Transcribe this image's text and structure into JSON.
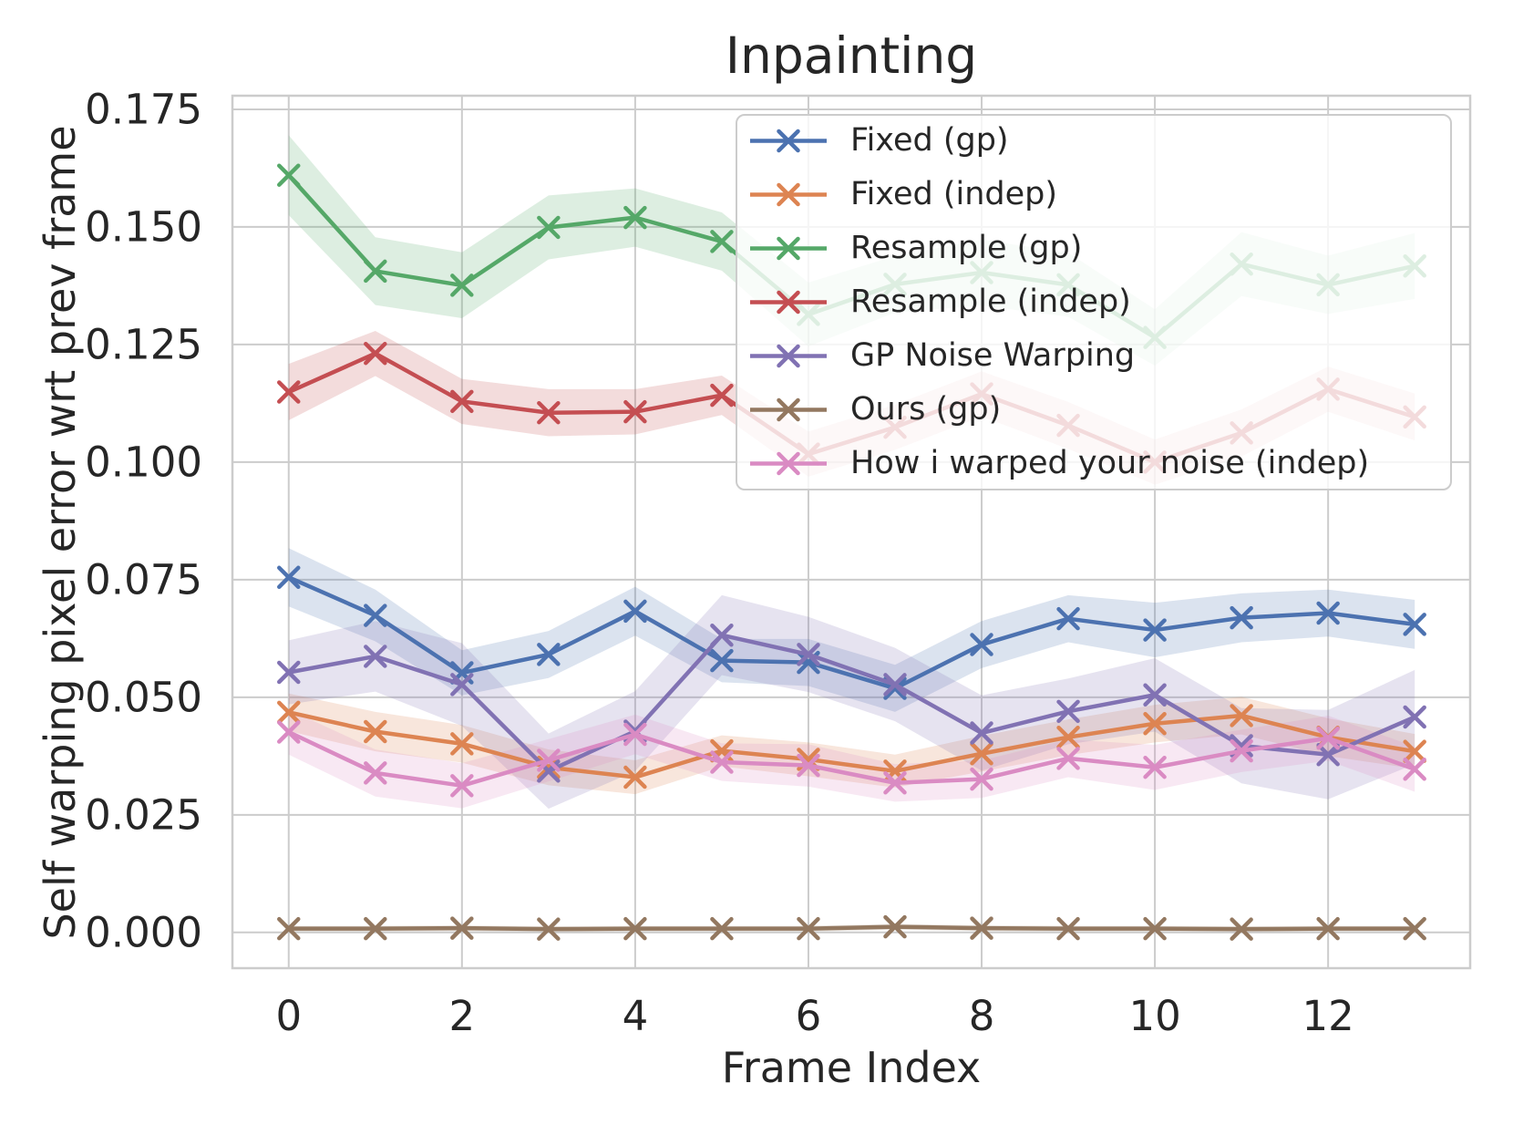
{
  "chart_data": {
    "type": "line",
    "title": "Inpainting",
    "xlabel": "Frame Index",
    "ylabel": "Self warping pixel error wrt prev frame",
    "x": [
      0,
      1,
      2,
      3,
      4,
      5,
      6,
      7,
      8,
      9,
      10,
      11,
      12,
      13
    ],
    "x_ticks": [
      0,
      2,
      4,
      6,
      8,
      10,
      12
    ],
    "y_ticks": [
      0.0,
      0.025,
      0.05,
      0.075,
      0.1,
      0.125,
      0.15,
      0.175
    ],
    "y_tick_labels": [
      "0.000",
      "0.025",
      "0.050",
      "0.075",
      "0.100",
      "0.125",
      "0.150",
      "0.175"
    ],
    "xlim": [
      -0.65,
      13.64
    ],
    "ylim": [
      -0.0076,
      0.1779
    ],
    "grid": true,
    "legend_position": "upper right",
    "marker": "x",
    "series": [
      {
        "name": "Fixed (gp)",
        "color": "#4c72b0",
        "values": [
          0.0755,
          0.0674,
          0.0552,
          0.0591,
          0.0683,
          0.0578,
          0.0574,
          0.0519,
          0.0612,
          0.0667,
          0.0643,
          0.0669,
          0.0679,
          0.0655
        ],
        "band": [
          0.0062,
          0.0055,
          0.0048,
          0.005,
          0.0052,
          0.0046,
          0.005,
          0.005,
          0.005,
          0.005,
          0.0058,
          0.0052,
          0.005,
          0.0052
        ]
      },
      {
        "name": "Fixed (indep)",
        "color": "#dd8452",
        "values": [
          0.0468,
          0.0427,
          0.0401,
          0.0351,
          0.033,
          0.0386,
          0.0368,
          0.0343,
          0.038,
          0.0415,
          0.0444,
          0.0461,
          0.0415,
          0.0385
        ],
        "band": [
          0.004,
          0.0042,
          0.004,
          0.0038,
          0.0036,
          0.0033,
          0.0036,
          0.0035,
          0.0038,
          0.0038,
          0.004,
          0.004,
          0.004,
          0.0037
        ]
      },
      {
        "name": "Resample (gp)",
        "color": "#55a868",
        "values": [
          0.161,
          0.1406,
          0.1376,
          0.1499,
          0.152,
          0.1469,
          0.1314,
          0.1378,
          0.1403,
          0.1377,
          0.1265,
          0.1421,
          0.1377,
          0.1417
        ],
        "band": [
          0.0085,
          0.0072,
          0.007,
          0.0068,
          0.0062,
          0.0062,
          0.0068,
          0.006,
          0.007,
          0.0068,
          0.006,
          0.0068,
          0.0062,
          0.007
        ]
      },
      {
        "name": "Resample (indep)",
        "color": "#c44e52",
        "values": [
          0.1149,
          0.1231,
          0.1129,
          0.1105,
          0.1107,
          0.1142,
          0.1017,
          0.1074,
          0.1145,
          0.1078,
          0.1,
          0.1062,
          0.1155,
          0.1096
        ],
        "band": [
          0.006,
          0.0048,
          0.0048,
          0.005,
          0.0048,
          0.0042,
          0.0048,
          0.0048,
          0.0048,
          0.005,
          0.0048,
          0.005,
          0.0048,
          0.005
        ]
      },
      {
        "name": "GP Noise Warping",
        "color": "#8172b3",
        "values": [
          0.0553,
          0.0587,
          0.0527,
          0.0343,
          0.0428,
          0.0632,
          0.0591,
          0.0527,
          0.0424,
          0.047,
          0.0505,
          0.0397,
          0.0378,
          0.0458
        ],
        "band": [
          0.0068,
          0.0075,
          0.0088,
          0.008,
          0.0085,
          0.0085,
          0.008,
          0.0078,
          0.008,
          0.007,
          0.0078,
          0.008,
          0.0095,
          0.01
        ]
      },
      {
        "name": "Ours (gp)",
        "color": "#937860",
        "values": [
          0.0008,
          0.0008,
          0.0009,
          0.0007,
          0.0008,
          0.0008,
          0.0008,
          0.0012,
          0.0009,
          0.0008,
          0.0008,
          0.0007,
          0.0008,
          0.0008
        ],
        "band": [
          0.0006,
          0.0006,
          0.0006,
          0.0006,
          0.0006,
          0.0006,
          0.0006,
          0.0006,
          0.0006,
          0.0006,
          0.0006,
          0.0006,
          0.0006,
          0.0006
        ]
      },
      {
        "name": "How i warped your noise (indep)",
        "color": "#da8bc3",
        "values": [
          0.0426,
          0.0339,
          0.0312,
          0.0366,
          0.0421,
          0.0362,
          0.0355,
          0.0318,
          0.0326,
          0.037,
          0.0351,
          0.0386,
          0.0413,
          0.0347
        ],
        "band": [
          0.0048,
          0.005,
          0.0048,
          0.0045,
          0.0042,
          0.004,
          0.0045,
          0.004,
          0.004,
          0.004,
          0.0048,
          0.0045,
          0.0048,
          0.0048
        ]
      }
    ]
  },
  "style": {
    "background": "#ffffff",
    "text_color": "#262626",
    "grid_color": "#cccccc",
    "spine_color": "#cccccc",
    "legend_background": "rgba(255,255,255,0.8)",
    "band_opacity": 0.2
  }
}
